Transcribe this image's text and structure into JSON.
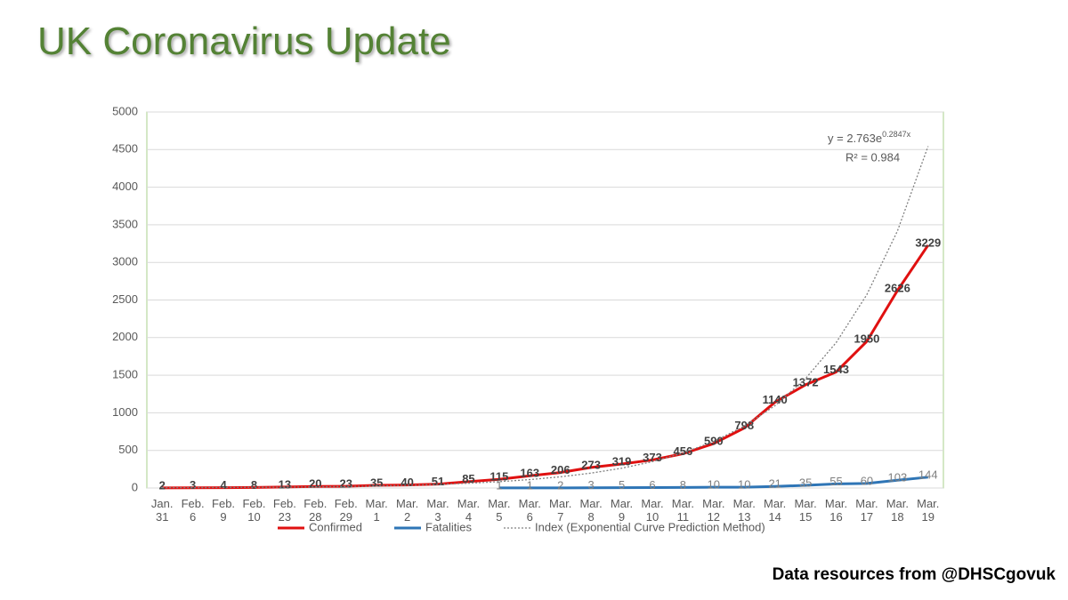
{
  "chart_data": {
    "type": "line",
    "title": "UK Coronavirus Update",
    "source": "Data resources from @DHSCgovuk",
    "categories": [
      "Jan. 31",
      "Feb. 6",
      "Feb. 9",
      "Feb. 10",
      "Feb. 23",
      "Feb. 28",
      "Feb. 29",
      "Mar. 1",
      "Mar. 2",
      "Mar. 3",
      "Mar. 4",
      "Mar. 5",
      "Mar. 6",
      "Mar. 7",
      "Mar. 8",
      "Mar. 9",
      "Mar. 10",
      "Mar. 11",
      "Mar. 12",
      "Mar. 13",
      "Mar. 14",
      "Mar. 15",
      "Mar. 16",
      "Mar. 17",
      "Mar. 18",
      "Mar. 19"
    ],
    "series": [
      {
        "name": "Confirmed",
        "color": "#e01010",
        "labels": true,
        "values": [
          2,
          3,
          4,
          8,
          13,
          20,
          23,
          35,
          40,
          51,
          85,
          115,
          163,
          206,
          273,
          319,
          373,
          456,
          590,
          798,
          1140,
          1372,
          1543,
          1950,
          2626,
          3229
        ]
      },
      {
        "name": "Fatalities",
        "color": "#2e75b6",
        "labels": true,
        "values": [
          null,
          null,
          null,
          null,
          null,
          null,
          null,
          null,
          null,
          null,
          null,
          1,
          1,
          2,
          3,
          5,
          6,
          8,
          10,
          10,
          21,
          35,
          55,
          60,
          103,
          144
        ]
      },
      {
        "name": "Index (Exponential Curve Prediction Method)",
        "color": "#808080",
        "dashed": true,
        "labels": false,
        "values": [
          4,
          5,
          6,
          9,
          11,
          15,
          20,
          27,
          36,
          48,
          63,
          84,
          112,
          149,
          198,
          263,
          350,
          466,
          619,
          823,
          1094,
          1455,
          1934,
          2571,
          3418,
          4544
        ]
      }
    ],
    "trendline_equation": "y = 2.763e",
    "trendline_exponent": "0.2847x",
    "trendline_r2": "R² = 0.984",
    "ylim": [
      0,
      5000
    ],
    "yticks": [
      0,
      500,
      1000,
      1500,
      2000,
      2500,
      3000,
      3500,
      4000,
      4500,
      5000
    ],
    "grid": true,
    "legend": "bottom"
  }
}
